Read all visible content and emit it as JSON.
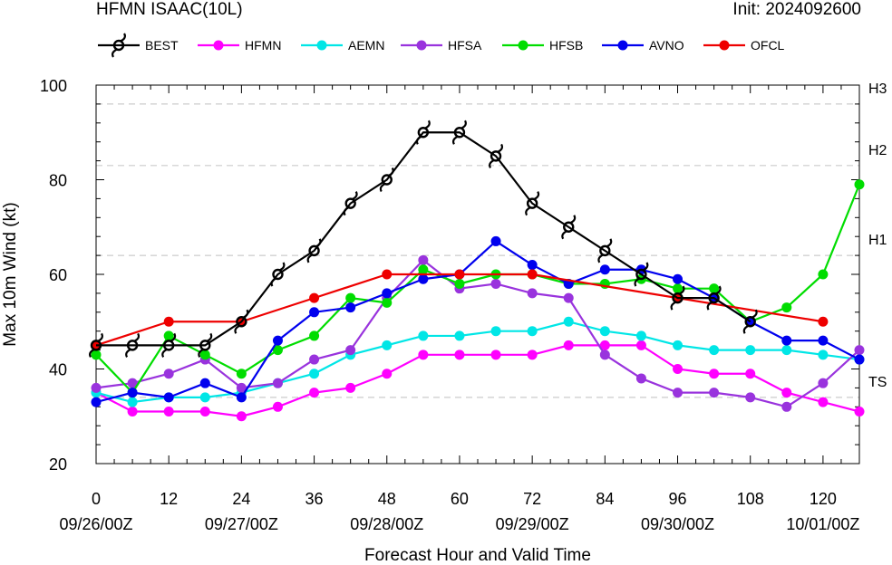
{
  "header": {
    "title_left": "HFMN ISAAC(10L)",
    "title_right": "Init: 2024092600"
  },
  "chart_data": {
    "type": "line",
    "title": "HFMN ISAAC(10L)",
    "subtitle": "Init: 2024092600",
    "xlabel": "Forecast Hour and Valid Time",
    "ylabel": "Max 10m Wind (kt)",
    "xlim": [
      0,
      126
    ],
    "ylim": [
      20,
      100
    ],
    "x_ticks": [
      0,
      12,
      24,
      36,
      48,
      60,
      72,
      84,
      96,
      108,
      120
    ],
    "y_ticks": [
      20,
      40,
      60,
      80,
      100
    ],
    "date_labels": [
      {
        "x": 0,
        "label": "09/26/00Z"
      },
      {
        "x": 24,
        "label": "09/27/00Z"
      },
      {
        "x": 48,
        "label": "09/28/00Z"
      },
      {
        "x": 72,
        "label": "09/29/00Z"
      },
      {
        "x": 96,
        "label": "09/30/00Z"
      },
      {
        "x": 120,
        "label": "10/01/00Z"
      }
    ],
    "intensity_thresholds": [
      {
        "label": "TS",
        "value": 34
      },
      {
        "label": "H1",
        "value": 64
      },
      {
        "label": "H2",
        "value": 83
      },
      {
        "label": "H3",
        "value": 96
      }
    ],
    "legend_position": "top",
    "series": [
      {
        "name": "BEST",
        "color": "#000000",
        "marker": "hurricane-symbol",
        "x": [
          0,
          6,
          12,
          18,
          24,
          30,
          36,
          42,
          48,
          54,
          60,
          66,
          72,
          78,
          84,
          90,
          96,
          102,
          108
        ],
        "y": [
          45,
          45,
          45,
          45,
          50,
          60,
          65,
          75,
          80,
          90,
          90,
          85,
          75,
          70,
          65,
          60,
          55,
          55,
          50
        ]
      },
      {
        "name": "HFMN",
        "color": "#ff00ff",
        "marker": "circle",
        "x": [
          0,
          6,
          12,
          18,
          24,
          30,
          36,
          42,
          48,
          54,
          60,
          66,
          72,
          78,
          84,
          90,
          96,
          102,
          108,
          114,
          120,
          126
        ],
        "y": [
          35,
          31,
          31,
          31,
          30,
          32,
          35,
          36,
          39,
          43,
          43,
          43,
          43,
          45,
          45,
          45,
          40,
          39,
          39,
          35,
          33,
          31
        ]
      },
      {
        "name": "AEMN",
        "color": "#00e6e6",
        "marker": "circle",
        "x": [
          0,
          6,
          12,
          18,
          24,
          30,
          36,
          42,
          48,
          54,
          60,
          66,
          72,
          78,
          84,
          90,
          96,
          102,
          108,
          114,
          120,
          126
        ],
        "y": [
          35,
          33,
          34,
          34,
          35,
          37,
          39,
          43,
          45,
          47,
          47,
          48,
          48,
          50,
          48,
          47,
          45,
          44,
          44,
          44,
          43,
          42
        ]
      },
      {
        "name": "HFSA",
        "color": "#9933dd",
        "marker": "circle",
        "x": [
          0,
          6,
          12,
          18,
          24,
          30,
          36,
          42,
          48,
          54,
          60,
          66,
          72,
          78,
          84,
          90,
          96,
          102,
          108,
          114,
          120,
          126
        ],
        "y": [
          36,
          37,
          39,
          42,
          36,
          37,
          42,
          44,
          55,
          63,
          57,
          58,
          56,
          55,
          43,
          38,
          35,
          35,
          34,
          32,
          37,
          44
        ]
      },
      {
        "name": "HFSB",
        "color": "#00dd00",
        "marker": "circle",
        "x": [
          0,
          6,
          12,
          18,
          24,
          30,
          36,
          42,
          48,
          54,
          60,
          66,
          72,
          78,
          84,
          90,
          96,
          102,
          108,
          114,
          120,
          126
        ],
        "y": [
          43,
          35,
          47,
          43,
          39,
          44,
          47,
          55,
          54,
          61,
          58,
          60,
          60,
          58,
          58,
          59,
          57,
          57,
          50,
          53,
          60,
          79
        ]
      },
      {
        "name": "AVNO",
        "color": "#0000ee",
        "marker": "circle",
        "x": [
          0,
          6,
          12,
          18,
          24,
          30,
          36,
          42,
          48,
          54,
          60,
          66,
          72,
          78,
          84,
          90,
          96,
          102,
          108,
          114,
          120,
          126
        ],
        "y": [
          33,
          35,
          34,
          37,
          34,
          46,
          52,
          53,
          56,
          59,
          60,
          67,
          62,
          58,
          61,
          61,
          59,
          55,
          50,
          46,
          46,
          42
        ]
      },
      {
        "name": "OFCL",
        "color": "#ee0000",
        "marker": "circle",
        "x": [
          0,
          12,
          24,
          36,
          48,
          60,
          72,
          96,
          120
        ],
        "y": [
          45,
          50,
          50,
          55,
          60,
          60,
          60,
          55,
          50
        ]
      }
    ]
  }
}
